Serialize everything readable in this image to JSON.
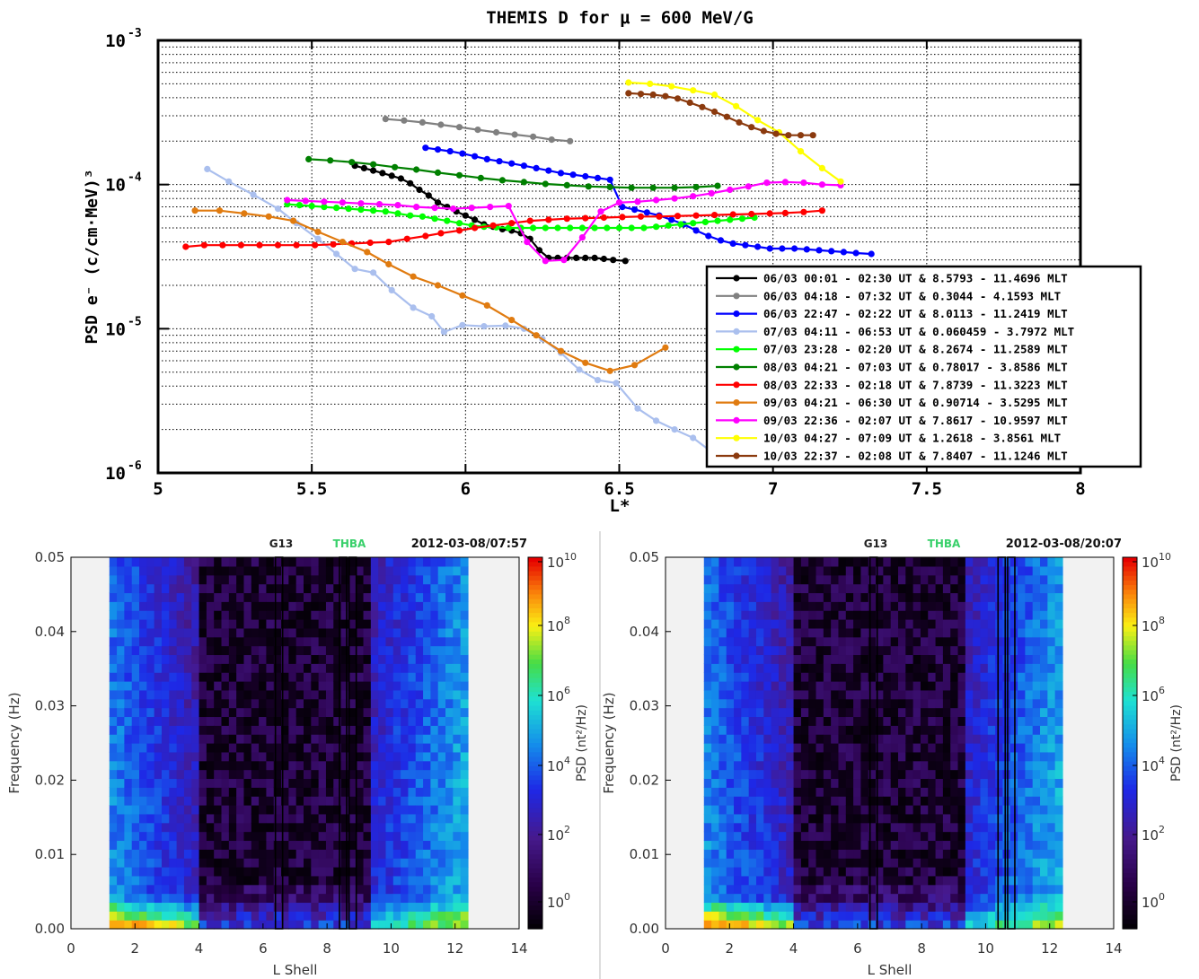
{
  "top": {
    "title": "THEMIS D for μ = 600 MeV/G",
    "xlabel": "L*",
    "ylabel": "PSD e⁻ (c/cm·MeV)³",
    "xticks": [
      "5",
      "5.5",
      "6",
      "6.5",
      "7",
      "7.5",
      "8"
    ],
    "yticks": [
      {
        "base": "10",
        "exp": "-3"
      },
      {
        "base": "10",
        "exp": "-4"
      },
      {
        "base": "10",
        "exp": "-5"
      },
      {
        "base": "10",
        "exp": "-6"
      }
    ]
  },
  "chart_data": [
    {
      "type": "line",
      "title": "THEMIS D for μ = 600 MeV/G",
      "xlabel": "L*",
      "ylabel": "PSD e⁻ (c/cm·MeV)³",
      "xlim": [
        5,
        8
      ],
      "ylim": [
        1e-06,
        0.001
      ],
      "yscale": "log",
      "grid": true,
      "legend_position": "bottom-right",
      "series": [
        {
          "name": "06/03 00:01 - 02:30 UT & 8.5793 - 11.4696 MLT",
          "color": "#000000",
          "x": [
            5.64,
            5.67,
            5.7,
            5.73,
            5.76,
            5.79,
            5.82,
            5.85,
            5.88,
            5.91,
            5.94,
            5.97,
            6.0,
            6.03,
            6.06,
            6.09,
            6.12,
            6.15,
            6.18,
            6.21,
            6.24,
            6.27,
            6.3,
            6.33,
            6.36,
            6.39,
            6.42,
            6.45,
            6.48,
            6.52
          ],
          "y": [
            0.000135,
            0.00013,
            0.000125,
            0.00012,
            0.000115,
            0.00011,
            0.000102,
            9.2e-05,
            8.4e-05,
            7.5e-05,
            7e-05,
            6.5e-05,
            6.1e-05,
            5.7e-05,
            5.3e-05,
            5.1e-05,
            4.9e-05,
            4.8e-05,
            4.6e-05,
            4.2e-05,
            3.5e-05,
            3.1e-05,
            3.1e-05,
            3.1e-05,
            3.1e-05,
            3.1e-05,
            3.1e-05,
            3.05e-05,
            3e-05,
            2.95e-05
          ]
        },
        {
          "name": "06/03 04:18 - 07:32 UT & 0.3044 - 4.1593 MLT",
          "color": "#808080",
          "x": [
            5.74,
            5.8,
            5.86,
            5.92,
            5.98,
            6.04,
            6.1,
            6.16,
            6.22,
            6.28,
            6.34
          ],
          "y": [
            0.000285,
            0.000278,
            0.00027,
            0.00026,
            0.00025,
            0.00024,
            0.00023,
            0.000222,
            0.000215,
            0.000205,
            0.0002
          ]
        },
        {
          "name": "06/03 22:47 - 02:22 UT & 8.0113 - 11.2419 MLT",
          "color": "#0000ff",
          "x": [
            5.87,
            5.91,
            5.95,
            5.99,
            6.03,
            6.07,
            6.11,
            6.15,
            6.19,
            6.23,
            6.27,
            6.31,
            6.35,
            6.39,
            6.43,
            6.47,
            6.51,
            6.55,
            6.59,
            6.63,
            6.67,
            6.71,
            6.75,
            6.79,
            6.83,
            6.87,
            6.91,
            6.95,
            6.99,
            7.03,
            7.07,
            7.11,
            7.15,
            7.19,
            7.23,
            7.27,
            7.32
          ],
          "y": [
            0.00018,
            0.000175,
            0.00017,
            0.000164,
            0.000157,
            0.00015,
            0.000145,
            0.00014,
            0.000135,
            0.00013,
            0.000125,
            0.00012,
            0.000117,
            0.000114,
            0.000111,
            0.000108,
            7e-05,
            6.7e-05,
            6.4e-05,
            6.1e-05,
            5.7e-05,
            5.3e-05,
            4.8e-05,
            4.4e-05,
            4.1e-05,
            3.9e-05,
            3.8e-05,
            3.7e-05,
            3.6e-05,
            3.6e-05,
            3.6e-05,
            3.55e-05,
            3.5e-05,
            3.45e-05,
            3.4e-05,
            3.35e-05,
            3.3e-05
          ]
        },
        {
          "name": "07/03 04:11 - 06:53 UT & 0.060459 - 3.7972 MLT",
          "color": "#aabfee",
          "x": [
            5.16,
            5.23,
            5.31,
            5.39,
            5.45,
            5.52,
            5.58,
            5.64,
            5.7,
            5.76,
            5.83,
            5.89,
            5.93,
            5.99,
            6.06,
            6.13,
            6.19,
            6.25,
            6.31,
            6.37,
            6.43,
            6.49,
            6.56,
            6.62,
            6.68,
            6.74,
            6.8
          ],
          "y": [
            0.000128,
            0.000105,
            8.5e-05,
            6.8e-05,
            5.4e-05,
            4.2e-05,
            3.3e-05,
            2.6e-05,
            2.45e-05,
            1.85e-05,
            1.4e-05,
            1.22e-05,
            9.5e-06,
            1.06e-05,
            1.04e-05,
            1.05e-05,
            1e-05,
            8.5e-06,
            6.8e-06,
            5.2e-06,
            4.4e-06,
            4.2e-06,
            2.8e-06,
            2.3e-06,
            2e-06,
            1.75e-06,
            1.4e-06
          ]
        },
        {
          "name": "07/03 23:28 - 02:20 UT & 8.2674 - 11.2589 MLT",
          "color": "#00ff00",
          "x": [
            5.42,
            5.46,
            5.5,
            5.54,
            5.58,
            5.62,
            5.66,
            5.7,
            5.74,
            5.78,
            5.82,
            5.86,
            5.9,
            5.94,
            5.98,
            6.02,
            6.06,
            6.1,
            6.14,
            6.18,
            6.22,
            6.26,
            6.3,
            6.34,
            6.38,
            6.42,
            6.46,
            6.5,
            6.54,
            6.58,
            6.62,
            6.66,
            6.7,
            6.74,
            6.78,
            6.82,
            6.86,
            6.9,
            6.94
          ],
          "y": [
            7.3e-05,
            7.2e-05,
            7.1e-05,
            7e-05,
            6.9e-05,
            6.8e-05,
            6.7e-05,
            6.6e-05,
            6.5e-05,
            6.3e-05,
            6.1e-05,
            6e-05,
            5.8e-05,
            5.6e-05,
            5.4e-05,
            5.2e-05,
            5.1e-05,
            5.05e-05,
            5e-05,
            5e-05,
            5e-05,
            5e-05,
            5e-05,
            5e-05,
            5e-05,
            5e-05,
            5e-05,
            5e-05,
            5e-05,
            5e-05,
            5.1e-05,
            5.2e-05,
            5.3e-05,
            5.4e-05,
            5.5e-05,
            5.6e-05,
            5.7e-05,
            5.8e-05,
            5.9e-05
          ]
        },
        {
          "name": "08/03 04:21 - 07:03 UT & 0.78017 - 3.8586 MLT",
          "color": "#008000",
          "x": [
            5.49,
            5.56,
            5.63,
            5.7,
            5.77,
            5.84,
            5.91,
            5.98,
            6.05,
            6.12,
            6.19,
            6.26,
            6.33,
            6.4,
            6.47,
            6.54,
            6.61,
            6.68,
            6.75,
            6.82
          ],
          "y": [
            0.00015,
            0.000147,
            0.000143,
            0.000138,
            0.000132,
            0.000127,
            0.000121,
            0.000116,
            0.000111,
            0.000107,
            0.000104,
            0.000101,
            9.9e-05,
            9.7e-05,
            9.6e-05,
            9.5e-05,
            9.5e-05,
            9.5e-05,
            9.6e-05,
            9.8e-05
          ]
        },
        {
          "name": "08/03 22:33 - 02:18 UT & 7.8739 - 11.3223 MLT",
          "color": "#ff0000",
          "x": [
            5.09,
            5.15,
            5.21,
            5.27,
            5.33,
            5.39,
            5.45,
            5.51,
            5.57,
            5.63,
            5.69,
            5.75,
            5.81,
            5.87,
            5.92,
            5.98,
            6.03,
            6.09,
            6.15,
            6.21,
            6.27,
            6.33,
            6.39,
            6.45,
            6.51,
            6.57,
            6.63,
            6.69,
            6.75,
            6.81,
            6.87,
            6.93,
            6.99,
            7.04,
            7.1,
            7.16
          ],
          "y": [
            3.7e-05,
            3.8e-05,
            3.8e-05,
            3.8e-05,
            3.8e-05,
            3.8e-05,
            3.8e-05,
            3.8e-05,
            3.85e-05,
            3.9e-05,
            3.95e-05,
            4e-05,
            4.2e-05,
            4.4e-05,
            4.6e-05,
            4.8e-05,
            5e-05,
            5.2e-05,
            5.4e-05,
            5.6e-05,
            5.7e-05,
            5.8e-05,
            5.85e-05,
            5.9e-05,
            5.95e-05,
            6e-05,
            6e-05,
            6.05e-05,
            6.1e-05,
            6.15e-05,
            6.2e-05,
            6.25e-05,
            6.3e-05,
            6.35e-05,
            6.45e-05,
            6.6e-05
          ]
        },
        {
          "name": "09/03 04:21 - 06:30 UT & 0.90714 - 3.5295 MLT",
          "color": "#e07b10",
          "x": [
            5.12,
            5.2,
            5.28,
            5.36,
            5.44,
            5.52,
            5.6,
            5.68,
            5.75,
            5.83,
            5.91,
            5.99,
            6.07,
            6.15,
            6.23,
            6.31,
            6.39,
            6.47,
            6.55,
            6.65
          ],
          "y": [
            6.6e-05,
            6.6e-05,
            6.3e-05,
            6e-05,
            5.6e-05,
            4.7e-05,
            4e-05,
            3.4e-05,
            2.8e-05,
            2.3e-05,
            2e-05,
            1.7e-05,
            1.45e-05,
            1.15e-05,
            9e-06,
            7e-06,
            5.8e-06,
            5.1e-06,
            5.6e-06,
            7.4e-06
          ]
        },
        {
          "name": "09/03 22:36 - 02:07 UT & 7.8617 - 10.9597 MLT",
          "color": "#ff00ff",
          "x": [
            5.42,
            5.48,
            5.54,
            5.6,
            5.66,
            5.72,
            5.78,
            5.84,
            5.9,
            5.96,
            6.02,
            6.08,
            6.14,
            6.2,
            6.26,
            6.32,
            6.38,
            6.44,
            6.5,
            6.56,
            6.62,
            6.68,
            6.74,
            6.8,
            6.86,
            6.92,
            6.98,
            7.04,
            7.1,
            7.16,
            7.22
          ],
          "y": [
            7.8e-05,
            7.7e-05,
            7.6e-05,
            7.5e-05,
            7.4e-05,
            7.3e-05,
            7.2e-05,
            7e-05,
            6.9e-05,
            6.8e-05,
            6.9e-05,
            7e-05,
            7.1e-05,
            4e-05,
            2.95e-05,
            3e-05,
            4.3e-05,
            6.5e-05,
            7.5e-05,
            7.6e-05,
            7.8e-05,
            8e-05,
            8.3e-05,
            8.7e-05,
            9.2e-05,
            9.7e-05,
            0.000103,
            0.000104,
            0.000103,
            0.0001,
            9.9e-05
          ]
        },
        {
          "name": "10/03 04:27 - 07:09 UT & 1.2618 - 3.8561 MLT",
          "color": "#ffff00",
          "x": [
            6.53,
            6.6,
            6.67,
            6.74,
            6.81,
            6.88,
            6.95,
            7.02,
            7.09,
            7.16,
            7.22
          ],
          "y": [
            0.00051,
            0.0005,
            0.00048,
            0.00045,
            0.00042,
            0.00035,
            0.00028,
            0.00023,
            0.00017,
            0.00013,
            0.000105
          ]
        },
        {
          "name": "10/03 22:37 - 02:08 UT & 7.8407 - 11.1246 MLT",
          "color": "#8b3a0e",
          "x": [
            6.53,
            6.57,
            6.61,
            6.65,
            6.69,
            6.73,
            6.77,
            6.81,
            6.85,
            6.89,
            6.93,
            6.97,
            7.01,
            7.05,
            7.09,
            7.13
          ],
          "y": [
            0.00043,
            0.000425,
            0.00042,
            0.00041,
            0.000395,
            0.00037,
            0.000345,
            0.00032,
            0.000295,
            0.00027,
            0.00025,
            0.000235,
            0.000225,
            0.00022,
            0.00022,
            0.00022
          ]
        }
      ]
    },
    {
      "type": "heatmap",
      "title": "",
      "labels": {
        "left": "G13",
        "middle": "THBA",
        "right": "2012-03-08/07:57"
      },
      "xlabel": "L Shell",
      "ylabel": "Frequency (Hz)",
      "xlim": [
        0,
        14
      ],
      "ylim": [
        0,
        0.05
      ],
      "xticks": [
        "0",
        "2",
        "4",
        "6",
        "8",
        "10",
        "12",
        "14"
      ],
      "yticks": [
        "0.00",
        "0.01",
        "0.02",
        "0.03",
        "0.04",
        "0.05"
      ],
      "colorbar_label": "PSD (nt²/Hz)",
      "colorbar_ticks": [
        "10^10",
        "10^8",
        "10^6",
        "10^4",
        "10^2",
        "10^0"
      ],
      "data_extent_L": [
        1.2,
        12.4
      ],
      "marked_L": [
        6.5,
        8.5,
        8.8
      ]
    },
    {
      "type": "heatmap",
      "title": "",
      "labels": {
        "left": "G13",
        "middle": "THBA",
        "right": "2012-03-08/20:07"
      },
      "xlabel": "L Shell",
      "ylabel": "Frequency (Hz)",
      "xlim": [
        0,
        14
      ],
      "ylim": [
        0,
        0.05
      ],
      "xticks": [
        "0",
        "2",
        "4",
        "6",
        "8",
        "10",
        "12",
        "14"
      ],
      "yticks": [
        "0.00",
        "0.01",
        "0.02",
        "0.03",
        "0.04",
        "0.05"
      ],
      "colorbar_label": "PSD (nt²/Hz)",
      "colorbar_ticks": [
        "10^10",
        "10^8",
        "10^6",
        "10^4",
        "10^2",
        "10^0"
      ],
      "data_extent_L": [
        1.2,
        12.4
      ],
      "marked_L": [
        6.5,
        10.5,
        10.8
      ]
    }
  ]
}
